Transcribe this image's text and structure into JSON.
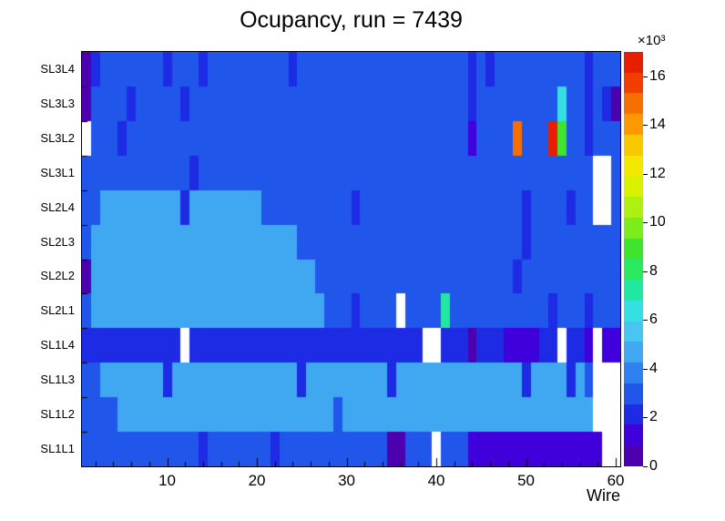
{
  "title": "Ocupancy, run = 7439",
  "chart_data": {
    "type": "heatmap",
    "title": "Ocupancy, run = 7439",
    "xlabel": "Wire",
    "value_unit": "×10³",
    "x_ticks": [
      10,
      20,
      30,
      40,
      50,
      60
    ],
    "x_range": [
      0.5,
      60.5
    ],
    "z_range": [
      0,
      17
    ],
    "colorbar_ticks": [
      0,
      2,
      4,
      6,
      8,
      10,
      12,
      14,
      16
    ],
    "legend_position": "right",
    "empty_color": "#ffffff",
    "palette": [
      "#4c00b0",
      "#3f00dc",
      "#1e2be4",
      "#2156ea",
      "#2f80f0",
      "#3fa8f0",
      "#46c6f0",
      "#35dfe2",
      "#20e8a0",
      "#2ae860",
      "#3fe52c",
      "#7cec1a",
      "#aef00e",
      "#d8f200",
      "#f2e800",
      "#f8c800",
      "#fa9a00",
      "#f76f00",
      "#f23c00",
      "#e81e00"
    ],
    "rows_top_to_bottom": [
      {
        "label": "SL3L4",
        "values": [
          0.8,
          2,
          3,
          3,
          3,
          3,
          3,
          3,
          3,
          2,
          3,
          3,
          3,
          2,
          3,
          3,
          3,
          3,
          3,
          3,
          3,
          3,
          3,
          2,
          3,
          3,
          3,
          3,
          3,
          3,
          3,
          3,
          3,
          3,
          3,
          3,
          3,
          3,
          3,
          3,
          3,
          3,
          3,
          2.5,
          3,
          2,
          3,
          3,
          3,
          3,
          3,
          3,
          3,
          3,
          3,
          3,
          2,
          3,
          3,
          3
        ]
      },
      {
        "label": "SL3L3",
        "values": [
          0.8,
          3,
          3,
          3,
          3,
          2,
          3,
          3,
          3,
          3,
          3,
          2,
          3,
          3,
          3,
          3,
          3,
          3,
          3,
          3,
          3,
          3,
          3,
          3,
          3,
          3,
          3,
          3,
          3,
          3,
          3,
          3,
          3,
          3,
          3,
          3,
          3,
          3,
          3,
          3,
          3,
          3,
          3,
          2,
          3,
          3,
          3,
          3,
          3,
          3,
          3,
          3,
          3,
          6,
          3,
          3,
          2,
          3,
          2,
          0.8
        ]
      },
      {
        "label": "SL3L2",
        "values": [
          null,
          3,
          3,
          3,
          2,
          3,
          3,
          3,
          3,
          3,
          3,
          3,
          3,
          3,
          3,
          3,
          3,
          3,
          3,
          3,
          3,
          3,
          3,
          3,
          3,
          3,
          3,
          3,
          3,
          3,
          3,
          3,
          3,
          3,
          3,
          3,
          3,
          3,
          3,
          3,
          3,
          3,
          3,
          1,
          3,
          3,
          3,
          3,
          14.5,
          3,
          3,
          3,
          16.5,
          9,
          3,
          3,
          2,
          3,
          3,
          3
        ]
      },
      {
        "label": "SL3L1",
        "values": [
          3,
          3,
          3,
          3,
          3,
          3,
          3,
          3,
          3,
          3,
          3,
          3,
          2,
          3,
          3,
          3,
          3,
          3,
          3,
          3,
          3,
          3,
          3,
          3,
          3,
          3,
          3,
          3,
          3,
          3,
          3,
          3,
          3,
          3,
          3,
          3,
          3,
          3,
          3,
          3,
          3,
          3,
          3,
          3,
          3,
          3,
          3,
          3,
          3,
          3,
          3,
          3,
          3,
          3,
          3,
          3,
          3,
          null,
          null,
          3
        ]
      },
      {
        "label": "SL2L4",
        "values": [
          3,
          3,
          4.7,
          4.7,
          4.7,
          4.7,
          4.7,
          4.7,
          4.7,
          4.7,
          4.7,
          2,
          4.7,
          4.7,
          4.7,
          4.7,
          4.7,
          4.7,
          4.7,
          4.7,
          3,
          3,
          3,
          3,
          3,
          3,
          3,
          3,
          3,
          3,
          2,
          3,
          3,
          3,
          3,
          3,
          3,
          3,
          3,
          3,
          3,
          3,
          3,
          3,
          3,
          3,
          3,
          3,
          3,
          2,
          3,
          3,
          3,
          3,
          2,
          3,
          3,
          null,
          null,
          3
        ]
      },
      {
        "label": "SL2L3",
        "values": [
          3,
          4.7,
          4.7,
          4.7,
          4.7,
          4.7,
          4.7,
          4.7,
          4.7,
          4.7,
          4.7,
          4.7,
          4.7,
          4.7,
          4.7,
          4.7,
          4.7,
          4.7,
          4.7,
          4.7,
          4.7,
          4.7,
          4.7,
          4.7,
          3,
          3,
          3,
          3,
          3,
          3,
          3,
          3,
          3,
          3,
          3,
          3,
          3,
          3,
          3,
          3,
          3,
          3,
          3,
          3,
          3,
          3,
          3,
          3,
          3,
          2,
          3,
          3,
          3,
          3,
          3,
          3,
          3,
          3,
          3,
          3
        ]
      },
      {
        "label": "SL2L2",
        "values": [
          0.8,
          4.7,
          4.7,
          4.7,
          4.7,
          4.7,
          4.7,
          4.7,
          4.7,
          4.7,
          4.7,
          4.7,
          4.7,
          4.7,
          4.7,
          4.7,
          4.7,
          4.7,
          4.7,
          4.7,
          4.7,
          4.7,
          4.7,
          4.7,
          4.7,
          4.7,
          3,
          3,
          3,
          3,
          3,
          3,
          3,
          3,
          3,
          3,
          3,
          3,
          3,
          3,
          3,
          3,
          3,
          3,
          3,
          3,
          3,
          3,
          2,
          3,
          3,
          3,
          3,
          3,
          3,
          3,
          3,
          3,
          3,
          3
        ]
      },
      {
        "label": "SL2L1",
        "values": [
          3,
          4.7,
          4.7,
          4.7,
          4.7,
          4.7,
          4.7,
          4.7,
          4.7,
          4.7,
          4.7,
          4.7,
          4.7,
          4.7,
          4.7,
          4.7,
          4.7,
          4.7,
          4.7,
          4.7,
          4.7,
          4.7,
          4.7,
          4.7,
          4.7,
          4.7,
          4.7,
          3,
          3,
          3,
          2,
          3,
          3,
          3,
          3,
          null,
          3,
          3,
          3,
          3,
          7.5,
          3,
          3,
          3,
          3,
          3,
          3,
          3,
          3,
          3,
          3,
          3,
          2.5,
          3,
          3,
          3,
          2,
          3,
          3,
          3
        ]
      },
      {
        "label": "SL1L4",
        "values": [
          2.2,
          2.2,
          2.2,
          2.2,
          2.2,
          2.2,
          1.8,
          2.2,
          2.2,
          2.2,
          2.2,
          null,
          1.8,
          2.2,
          2.2,
          2.2,
          2.2,
          2.2,
          2.2,
          2.2,
          1.8,
          2.2,
          2.2,
          2.2,
          2.2,
          2.2,
          2.2,
          2.2,
          2.2,
          2.2,
          2.2,
          2.2,
          1.8,
          2.2,
          2.2,
          2.2,
          2.2,
          2.2,
          null,
          null,
          2.2,
          2.2,
          2.2,
          0.8,
          2.2,
          2.2,
          2.2,
          1,
          1,
          1,
          1,
          2.2,
          2.2,
          null,
          2.2,
          2.2,
          1,
          null,
          1,
          1
        ]
      },
      {
        "label": "SL1L3",
        "values": [
          3,
          3,
          4.7,
          4.7,
          4.7,
          4.7,
          4.7,
          4.7,
          4.7,
          2,
          4.7,
          4.7,
          4.7,
          4.7,
          4.7,
          4.7,
          4.7,
          4.7,
          4.7,
          4.7,
          4.7,
          4.7,
          4.7,
          4.7,
          2,
          4.7,
          4.7,
          4.7,
          4.7,
          4.7,
          4.7,
          4.7,
          4.7,
          4.7,
          2,
          4.7,
          4.7,
          4.7,
          4.7,
          4.7,
          4.7,
          4.7,
          4.7,
          4.7,
          4.7,
          4.7,
          4.7,
          4.7,
          4.7,
          2,
          4.7,
          4.7,
          4.7,
          4.7,
          2,
          4.7,
          3,
          null,
          null,
          null
        ]
      },
      {
        "label": "SL1L2",
        "values": [
          3,
          3,
          3,
          3,
          4.7,
          4.7,
          4.7,
          4.7,
          4.7,
          4.7,
          4.7,
          4.7,
          4.7,
          4.7,
          4.7,
          4.7,
          4.7,
          4.7,
          4.7,
          4.7,
          4.7,
          4.7,
          4.7,
          4.7,
          4.7,
          4.7,
          4.7,
          4.7,
          3,
          4.7,
          4.7,
          4.7,
          4.7,
          4.7,
          4.7,
          4.7,
          4.7,
          4.7,
          4.7,
          4.7,
          4.7,
          4.7,
          4.7,
          4.7,
          4.7,
          4.7,
          4.7,
          4.7,
          4.7,
          4.7,
          4.7,
          4.7,
          4.7,
          4.7,
          4.7,
          4.7,
          4.7,
          null,
          null,
          null
        ]
      },
      {
        "label": "SL1L1",
        "values": [
          3,
          3,
          3,
          3,
          3,
          3,
          3,
          3,
          3,
          3,
          3,
          3,
          3,
          1.8,
          3,
          3,
          3,
          3,
          3,
          3,
          3,
          2,
          3,
          3,
          3,
          3,
          3,
          3,
          3,
          3,
          3,
          3,
          3,
          3,
          0.8,
          0.8,
          3,
          3,
          3,
          null,
          3,
          3,
          3,
          1,
          1,
          1,
          1,
          1,
          1,
          1,
          1,
          1,
          1,
          1,
          1,
          1,
          1,
          1,
          null,
          null
        ]
      }
    ]
  }
}
